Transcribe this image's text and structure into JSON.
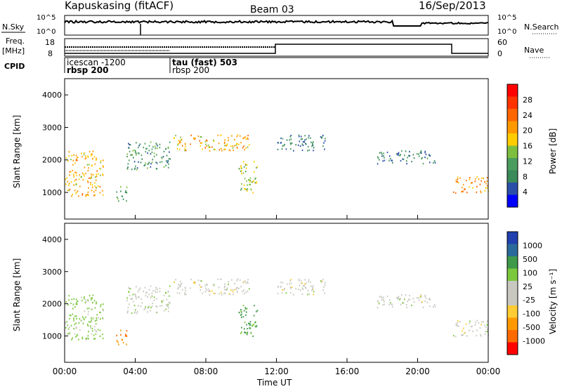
{
  "header": {
    "station": "Kapuskasing (fitACF)",
    "beam": "Beam 03",
    "date": "16/Sep/2013"
  },
  "top_panels": {
    "nsky_label": "N.Sky",
    "nsky_ticks": [
      "10^5",
      "10^0"
    ],
    "nsearch_label": "N.Search",
    "nsearch_ticks": [
      "10^5",
      "10^0"
    ],
    "freq_label_1": "Freq.",
    "freq_label_2": "[MHz]",
    "freq_ticks": [
      "18",
      "8"
    ],
    "nave_label": "Nave",
    "nave_ticks": [
      "60",
      "0"
    ],
    "cpid_label": "CPID",
    "cpid_entries": [
      {
        "line1": "icescan -1200",
        "line2": "rbsp 200"
      },
      {
        "line1": "tau (fast) 503",
        "line2": "rbsp 200"
      }
    ]
  },
  "power_panel": {
    "ylabel": "Slant Range [km]",
    "yticks": [
      "4000",
      "3000",
      "2000",
      "1000"
    ],
    "colorbar_label": "Power [dB]",
    "colorbar_ticks": [
      "28",
      "24",
      "20",
      "16",
      "12",
      "8",
      "4"
    ],
    "colorbar_colors": [
      "#0000ff",
      "#2b4fa8",
      "#3a8a5a",
      "#4a9d5e",
      "#7fbf3f",
      "#ffcc00",
      "#ff9900",
      "#ff6600",
      "#ff3300",
      "#ff0000"
    ]
  },
  "velocity_panel": {
    "ylabel": "Slant Range [km]",
    "yticks": [
      "4000",
      "3000",
      "2000",
      "1000"
    ],
    "colorbar_label": "Velocity [m s⁻¹]",
    "colorbar_ticks": [
      "1000",
      "500",
      "100",
      "25",
      "-25",
      "-100",
      "-500",
      "-1000"
    ],
    "colorbar_colors": [
      "#2040b0",
      "#2a6a9a",
      "#3e9a4a",
      "#7cc83c",
      "#c8c8c0",
      "#c8c8c0",
      "#ffcc33",
      "#ff9900",
      "#ff6a00",
      "#ff0000"
    ]
  },
  "xaxis": {
    "label": "Time UT",
    "ticks": [
      "00:00",
      "04:00",
      "08:00",
      "12:00",
      "16:00",
      "20:00",
      "00:00"
    ]
  },
  "chart_data": {
    "type": "heatmap",
    "title": "Kapuskasing (fitACF)",
    "x_range_hours": [
      0,
      24
    ],
    "y_range_km": [
      180,
      4500
    ],
    "ylabel": "Slant Range [km]",
    "xlabel": "Time UT",
    "power_db_range": [
      0,
      30
    ],
    "velocity_range": [
      -1000,
      1000
    ],
    "echo_regions": [
      {
        "t0": 0.0,
        "t1": 2.2,
        "r0": 900,
        "r1": 2300,
        "power_db": 18,
        "velocity": 40
      },
      {
        "t0": 2.8,
        "t1": 3.5,
        "r0": 700,
        "r1": 1200,
        "power_db": 10,
        "velocity": -300
      },
      {
        "t0": 3.5,
        "t1": 6.0,
        "r0": 1700,
        "r1": 2600,
        "power_db": 9,
        "velocity": 10
      },
      {
        "t0": 6.0,
        "t1": 10.5,
        "r0": 2300,
        "r1": 2800,
        "power_db": 18,
        "velocity": 0
      },
      {
        "t0": 9.8,
        "t1": 10.9,
        "r0": 1000,
        "r1": 2000,
        "power_db": 14,
        "velocity": 120
      },
      {
        "t0": 12.0,
        "t1": 14.8,
        "r0": 2300,
        "r1": 2800,
        "power_db": 7,
        "velocity": 0
      },
      {
        "t0": 17.5,
        "t1": 21.0,
        "r0": 1900,
        "r1": 2300,
        "power_db": 8,
        "velocity": 0
      },
      {
        "t0": 22.0,
        "t1": 24.0,
        "r0": 1000,
        "r1": 1500,
        "power_db": 20,
        "velocity": 0
      }
    ]
  }
}
